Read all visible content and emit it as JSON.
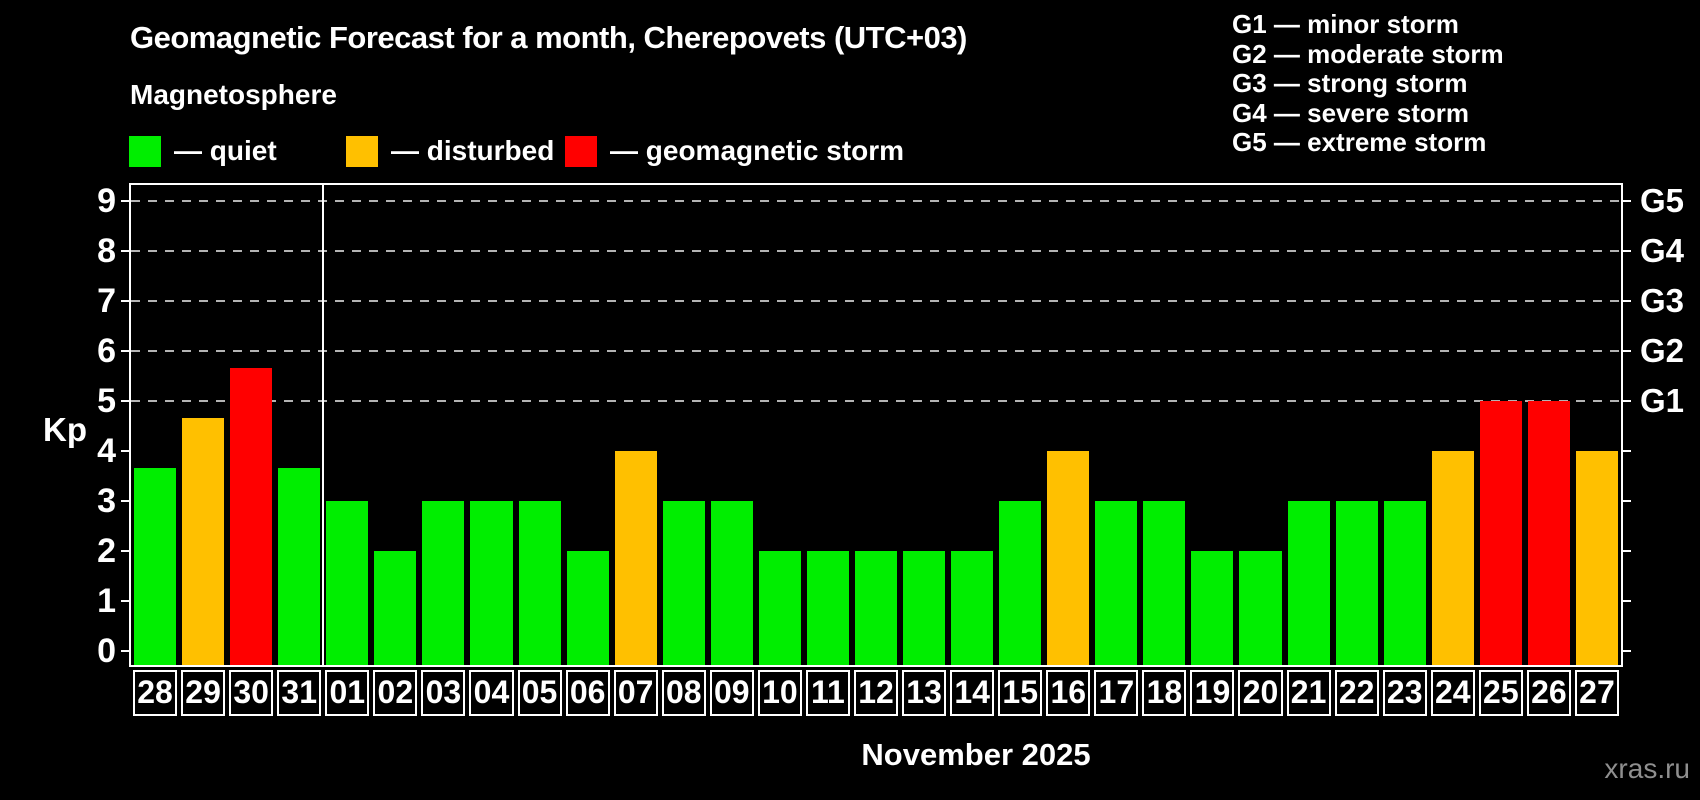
{
  "header": {
    "title": "Geomagnetic Forecast for a month, Cherepovets (UTC+03)",
    "subtitle": "Magnetosphere"
  },
  "legend": {
    "items": [
      {
        "key": "quiet",
        "label": "— quiet",
        "color": "#00ee00"
      },
      {
        "key": "disturbed",
        "label": "— disturbed",
        "color": "#ffc000"
      },
      {
        "key": "storm",
        "label": "— geomagnetic storm",
        "color": "#ff0000"
      }
    ]
  },
  "g_scale_legend": {
    "items": [
      {
        "code": "G1",
        "label": "G1 — minor storm"
      },
      {
        "code": "G2",
        "label": "G2 — moderate storm"
      },
      {
        "code": "G3",
        "label": "G3 — strong storm"
      },
      {
        "code": "G4",
        "label": "G4 — severe storm"
      },
      {
        "code": "G5",
        "label": "G5 — extreme storm"
      }
    ]
  },
  "chart_data": {
    "type": "bar",
    "title": "Geomagnetic Forecast for a month, Cherepovets (UTC+03)",
    "ylabel": "Kp",
    "xlabel": "November 2025",
    "ylim": [
      0,
      9
    ],
    "grid": "dashed horizontal at Kp 5-9 only",
    "legend_position": "top-left",
    "left_ticks": [
      0,
      1,
      2,
      3,
      4,
      5,
      6,
      7,
      8,
      9
    ],
    "gridlines_kp": [
      5,
      6,
      7,
      8,
      9
    ],
    "right_axis_labels": [
      {
        "kp": 5,
        "label": "G1"
      },
      {
        "kp": 6,
        "label": "G2"
      },
      {
        "kp": 7,
        "label": "G3"
      },
      {
        "kp": 8,
        "label": "G4"
      },
      {
        "kp": 9,
        "label": "G5"
      }
    ],
    "month_separator_after_index": 3,
    "categories": [
      "28",
      "29",
      "30",
      "31",
      "01",
      "02",
      "03",
      "04",
      "05",
      "06",
      "07",
      "08",
      "09",
      "10",
      "11",
      "12",
      "13",
      "14",
      "15",
      "16",
      "17",
      "18",
      "19",
      "20",
      "21",
      "22",
      "23",
      "24",
      "25",
      "26",
      "27"
    ],
    "values": [
      3.67,
      4.67,
      5.67,
      3.67,
      3,
      2,
      3,
      3,
      3,
      2,
      4,
      3,
      3,
      2,
      2,
      2,
      2,
      2,
      3,
      4,
      3,
      3,
      2,
      2,
      3,
      3,
      3,
      4,
      5,
      5,
      4
    ],
    "statuses": [
      "quiet",
      "disturbed",
      "storm",
      "quiet",
      "quiet",
      "quiet",
      "quiet",
      "quiet",
      "quiet",
      "quiet",
      "disturbed",
      "quiet",
      "quiet",
      "quiet",
      "quiet",
      "quiet",
      "quiet",
      "quiet",
      "quiet",
      "disturbed",
      "quiet",
      "quiet",
      "quiet",
      "quiet",
      "quiet",
      "quiet",
      "quiet",
      "disturbed",
      "storm",
      "storm",
      "disturbed"
    ],
    "colors": {
      "quiet": "#00ee00",
      "disturbed": "#ffc000",
      "storm": "#ff0000"
    }
  },
  "footer": {
    "month_label": "November 2025",
    "watermark": "xras.ru"
  }
}
